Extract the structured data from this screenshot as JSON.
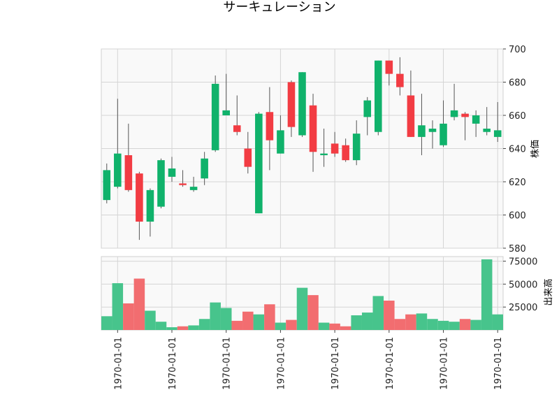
{
  "chart_data": {
    "type": "candlestick",
    "title": "サーキュレーション",
    "price_axis": {
      "label": "株価",
      "ylim": [
        580,
        700
      ],
      "ticks": [
        580,
        600,
        620,
        640,
        660,
        680,
        700
      ]
    },
    "volume_axis": {
      "label": "出来高",
      "ylim": [
        0,
        80000
      ],
      "ticks": [
        25000,
        50000,
        75000
      ]
    },
    "x_tick_labels": [
      "1970-01-01",
      "1970-01-01",
      "1970-01-01",
      "1970-01-01",
      "1970-01-01",
      "1970-01-01",
      "1970-01-01",
      "1970-01-01"
    ],
    "x_tick_positions": [
      1,
      6,
      11,
      16,
      21,
      26,
      31,
      36
    ],
    "colors": {
      "up": "#10b26b",
      "down": "#f23c43",
      "up_volume": "#47c48c",
      "down_volume": "#f26d70",
      "panel_bg": "#f9f9f9",
      "grid": "#d5d5d5"
    },
    "candles": [
      {
        "open": 609,
        "high": 631,
        "low": 607,
        "close": 627,
        "volume": 15000
      },
      {
        "open": 617,
        "high": 670,
        "low": 616,
        "close": 637,
        "volume": 51000
      },
      {
        "open": 636,
        "high": 655,
        "low": 614,
        "close": 615,
        "volume": 29000
      },
      {
        "open": 625,
        "high": 626,
        "low": 585,
        "close": 596,
        "volume": 56000
      },
      {
        "open": 596,
        "high": 616,
        "low": 587,
        "close": 615,
        "volume": 21000
      },
      {
        "open": 605,
        "high": 634,
        "low": 604,
        "close": 633,
        "volume": 9000
      },
      {
        "open": 623,
        "high": 635,
        "low": 620,
        "close": 628,
        "volume": 3000
      },
      {
        "open": 619,
        "high": 627,
        "low": 617,
        "close": 618,
        "volume": 4000
      },
      {
        "open": 615,
        "high": 623,
        "low": 614,
        "close": 617,
        "volume": 5000
      },
      {
        "open": 622,
        "high": 638,
        "low": 618,
        "close": 634,
        "volume": 12000
      },
      {
        "open": 639,
        "high": 684,
        "low": 638,
        "close": 679,
        "volume": 30000
      },
      {
        "open": 660,
        "high": 685,
        "low": 660,
        "close": 663,
        "volume": 24000
      },
      {
        "open": 654,
        "high": 672,
        "low": 648,
        "close": 650,
        "volume": 10000
      },
      {
        "open": 640,
        "high": 650,
        "low": 625,
        "close": 629,
        "volume": 20000
      },
      {
        "open": 601,
        "high": 662,
        "low": 601,
        "close": 661,
        "volume": 17000
      },
      {
        "open": 662,
        "high": 677,
        "low": 627,
        "close": 645,
        "volume": 28000
      },
      {
        "open": 637,
        "high": 660,
        "low": 637,
        "close": 651,
        "volume": 8000
      },
      {
        "open": 680,
        "high": 681,
        "low": 647,
        "close": 653,
        "volume": 11000
      },
      {
        "open": 648,
        "high": 686,
        "low": 647,
        "close": 686,
        "volume": 46000
      },
      {
        "open": 666,
        "high": 673,
        "low": 626,
        "close": 638,
        "volume": 38000
      },
      {
        "open": 636,
        "high": 652,
        "low": 629,
        "close": 637,
        "volume": 8000
      },
      {
        "open": 643,
        "high": 650,
        "low": 635,
        "close": 637,
        "volume": 7000
      },
      {
        "open": 642,
        "high": 646,
        "low": 632,
        "close": 633,
        "volume": 4000
      },
      {
        "open": 633,
        "high": 657,
        "low": 630,
        "close": 649,
        "volume": 16000
      },
      {
        "open": 659,
        "high": 671,
        "low": 648,
        "close": 669,
        "volume": 19000
      },
      {
        "open": 650,
        "high": 693,
        "low": 648,
        "close": 693,
        "volume": 37000
      },
      {
        "open": 693,
        "high": 693,
        "low": 678,
        "close": 685,
        "volume": 32000
      },
      {
        "open": 685,
        "high": 695,
        "low": 672,
        "close": 677,
        "volume": 12000
      },
      {
        "open": 672,
        "high": 687,
        "low": 647,
        "close": 647,
        "volume": 17000
      },
      {
        "open": 647,
        "high": 673,
        "low": 636,
        "close": 654,
        "volume": 18000
      },
      {
        "open": 650,
        "high": 657,
        "low": 640,
        "close": 652,
        "volume": 12000
      },
      {
        "open": 642,
        "high": 669,
        "low": 641,
        "close": 655,
        "volume": 10000
      },
      {
        "open": 659,
        "high": 679,
        "low": 657,
        "close": 663,
        "volume": 9000
      },
      {
        "open": 661,
        "high": 662,
        "low": 645,
        "close": 659,
        "volume": 12000
      },
      {
        "open": 655,
        "high": 663,
        "low": 647,
        "close": 660,
        "volume": 11000
      },
      {
        "open": 650,
        "high": 665,
        "low": 648,
        "close": 652,
        "volume": 77000
      },
      {
        "open": 647,
        "high": 668,
        "low": 644,
        "close": 651,
        "volume": 17000
      }
    ]
  }
}
